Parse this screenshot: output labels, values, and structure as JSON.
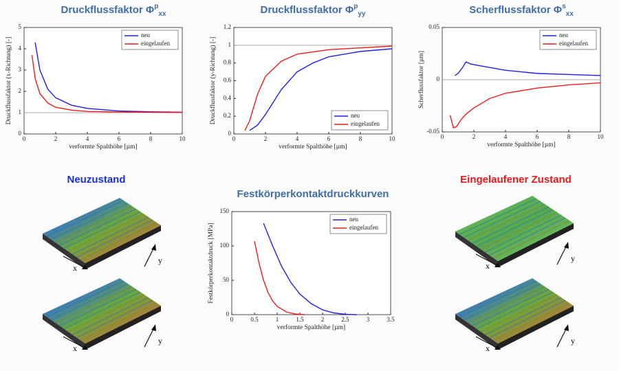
{
  "chart_data": [
    {
      "type": "line",
      "title": "Druckflussfaktor Φ",
      "title_sup": "p",
      "title_sub": "xx",
      "xlabel": "verformte Spalthöhe  [µm]",
      "ylabel": "Druckflussfaktor (x-Richtung)  [-]",
      "xlim": [
        0,
        10
      ],
      "xticks": [
        0,
        2,
        4,
        6,
        8,
        10
      ],
      "ylim": [
        0,
        5
      ],
      "yticks": [
        0,
        1,
        2,
        3,
        4,
        5
      ],
      "reference_line": 1,
      "legend": "upper right",
      "series": [
        {
          "name": "neu",
          "color": "#1f1fe8",
          "x": [
            0.7,
            1,
            1.5,
            2,
            3,
            4,
            6,
            8,
            10
          ],
          "values": [
            4.3,
            3.0,
            2.1,
            1.7,
            1.35,
            1.2,
            1.08,
            1.04,
            1.02
          ]
        },
        {
          "name": "eingelaufen",
          "color": "#ee1c1c",
          "x": [
            0.5,
            0.7,
            1,
            1.5,
            2,
            3,
            4,
            6,
            10
          ],
          "values": [
            3.7,
            2.6,
            1.9,
            1.45,
            1.25,
            1.12,
            1.06,
            1.03,
            1.01
          ]
        }
      ]
    },
    {
      "type": "line",
      "title": "Druckflussfaktor Φ",
      "title_sup": "p",
      "title_sub": "yy",
      "xlabel": "verformte Spalthöhe  [µm]",
      "ylabel": "Druckflussfaktor (y-Richtung)  [-]",
      "xlim": [
        0,
        10
      ],
      "xticks": [
        0,
        2,
        4,
        6,
        8,
        10
      ],
      "ylim": [
        0,
        1.2
      ],
      "yticks": [
        0,
        0.2,
        0.4,
        0.6,
        0.8,
        1,
        1.2
      ],
      "reference_line": 1,
      "legend": "lower right",
      "series": [
        {
          "name": "neu",
          "color": "#1f1fe8",
          "x": [
            1,
            1.5,
            2,
            3,
            4,
            5,
            6,
            8,
            10
          ],
          "values": [
            0.04,
            0.1,
            0.22,
            0.5,
            0.7,
            0.8,
            0.87,
            0.93,
            0.96
          ]
        },
        {
          "name": "eingelaufen",
          "color": "#ee1c1c",
          "x": [
            0.7,
            1,
            1.5,
            2,
            3,
            4,
            6,
            10
          ],
          "values": [
            0.04,
            0.15,
            0.45,
            0.65,
            0.82,
            0.9,
            0.95,
            0.99
          ]
        }
      ]
    },
    {
      "type": "line",
      "title": "Scherflussfaktor Φ",
      "title_sup": "s",
      "title_sub": "xx",
      "xlabel": "verformte Spalthöhe  [µm]",
      "ylabel": "Scherflussfaktor  [µm]",
      "xlim": [
        0,
        10
      ],
      "xticks": [
        0,
        2,
        4,
        6,
        8,
        10
      ],
      "ylim": [
        -0.05,
        0.05
      ],
      "yticks": [
        -0.05,
        0,
        0.05
      ],
      "reference_line": 0,
      "legend": "upper right",
      "series": [
        {
          "name": "neu",
          "color": "#1f1fe8",
          "x": [
            0.8,
            1,
            1.3,
            1.5,
            1.8,
            2.5,
            4,
            6,
            8,
            10
          ],
          "values": [
            0.004,
            0.006,
            0.012,
            0.017,
            0.015,
            0.013,
            0.009,
            0.006,
            0.005,
            0.004
          ]
        },
        {
          "name": "eingelaufen",
          "color": "#ee1c1c",
          "x": [
            0.5,
            0.7,
            0.9,
            1.2,
            1.5,
            2,
            3,
            4,
            6,
            8,
            10
          ],
          "values": [
            -0.034,
            -0.046,
            -0.045,
            -0.038,
            -0.033,
            -0.027,
            -0.018,
            -0.013,
            -0.008,
            -0.005,
            -0.003
          ]
        }
      ]
    },
    {
      "type": "line",
      "title": "Festkörperkontaktdruckkurven",
      "xlabel": "verformte Spalthöhe  [µm]",
      "ylabel": "Festkörperkontaktdruck  [MPa]",
      "xlim": [
        0,
        3.5
      ],
      "xticks": [
        0,
        0.5,
        1,
        1.5,
        2,
        2.5,
        3,
        3.5
      ],
      "ylim": [
        0,
        150
      ],
      "yticks": [
        0,
        50,
        100,
        150
      ],
      "legend": "upper right",
      "series": [
        {
          "name": "neu",
          "color": "#1f1fe8",
          "x": [
            0.7,
            0.9,
            1.1,
            1.3,
            1.5,
            1.75,
            2,
            2.25,
            2.5,
            2.75
          ],
          "values": [
            133,
            100,
            70,
            47,
            30,
            16,
            7,
            2.5,
            0.5,
            0
          ]
        },
        {
          "name": "eingelaufen",
          "color": "#ee1c1c",
          "x": [
            0.5,
            0.6,
            0.7,
            0.8,
            0.9,
            1,
            1.2,
            1.4,
            1.6
          ],
          "values": [
            107,
            75,
            50,
            32,
            20,
            12,
            4,
            1,
            0
          ]
        }
      ]
    }
  ],
  "panel_titles": {
    "new_state": "Neuzustand",
    "worn_state": "Eingelaufener Zustand"
  },
  "surface_axes": {
    "x": "x",
    "y": "y"
  }
}
